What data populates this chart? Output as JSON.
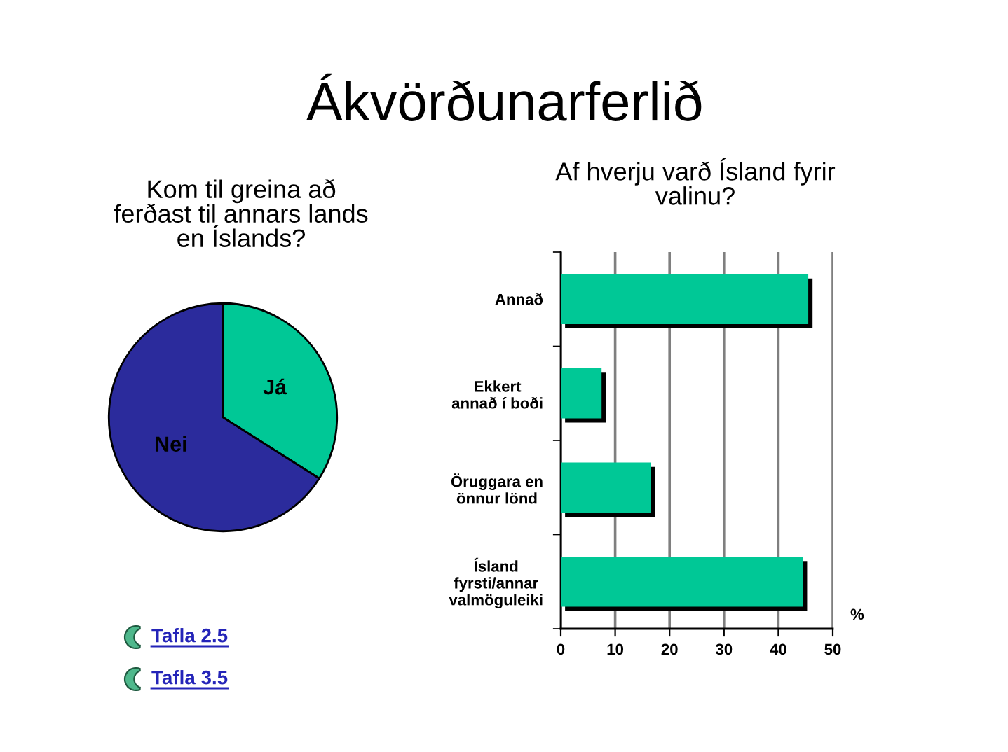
{
  "chart_data": [
    {
      "type": "other",
      "title": "Ákvörðunarferlið"
    },
    {
      "type": "pie",
      "title": "Kom til greina að\nferðast til annars lands\nen Íslands?",
      "categories": [
        "Já",
        "Nei"
      ],
      "values": [
        34,
        66
      ],
      "colors": [
        "#00c896",
        "#2b2b9c"
      ],
      "annotations": [
        "Tafla 2.5",
        "Tafla 3.5"
      ]
    },
    {
      "type": "bar",
      "orientation": "horizontal",
      "title": "Af hverju varð Ísland fyrir\nvalinu?",
      "categories": [
        "Annað",
        "Ekkert\nannað í boði",
        "Öruggara en\nönnur lönd",
        "Ísland\nfyrsti/annar\nvalmöguleiki"
      ],
      "values": [
        45.5,
        7.5,
        16.5,
        44.5
      ],
      "color": "#00c896",
      "xlim": [
        0,
        50
      ],
      "xticks": [
        0,
        10,
        20,
        30,
        40,
        50
      ],
      "xlabel": "%",
      "grid": "x"
    }
  ]
}
